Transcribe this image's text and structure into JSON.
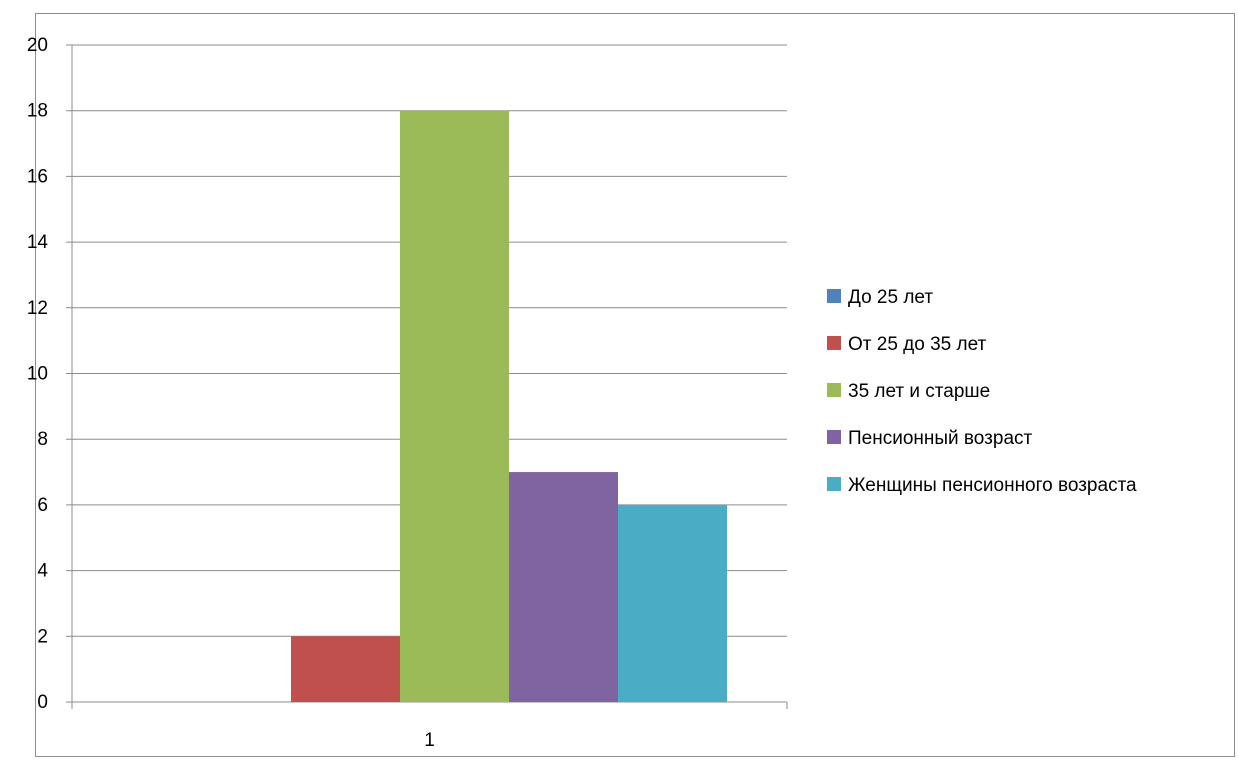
{
  "chart_data": {
    "type": "bar",
    "title": "",
    "xlabel": "",
    "ylabel": "",
    "categories": [
      "1"
    ],
    "ylim": [
      0,
      20
    ],
    "yticks": [
      0,
      2,
      4,
      6,
      8,
      10,
      12,
      14,
      16,
      18,
      20
    ],
    "grid": true,
    "legend_position": "right",
    "series": [
      {
        "name": "До 25 лет",
        "values": [
          0
        ],
        "color": "#4F81BD"
      },
      {
        "name": "От 25 до 35 лет",
        "values": [
          2
        ],
        "color": "#C0504D"
      },
      {
        "name": "35 лет и старше",
        "values": [
          18
        ],
        "color": "#9BBB59"
      },
      {
        "name": "Пенсионный возраст",
        "values": [
          7
        ],
        "color": "#8064A2"
      },
      {
        "name": "Женщины пенсионного возраста",
        "values": [
          6
        ],
        "color": "#4BACC6"
      }
    ]
  }
}
